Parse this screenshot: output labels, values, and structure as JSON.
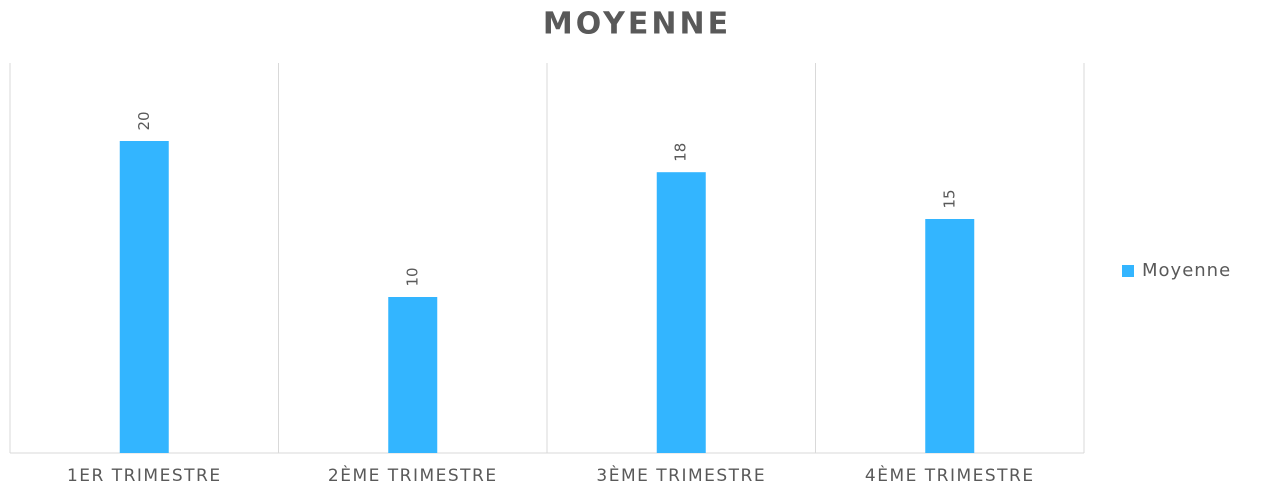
{
  "chart_data": {
    "type": "bar",
    "title": "MOYENNE",
    "categories": [
      "1ER TRIMESTRE",
      "2ÈME TRIMESTRE",
      "3ÈME TRIMESTRE",
      "4ÈME TRIMESTRE"
    ],
    "series": [
      {
        "name": "Moyenne",
        "color": "#33b5ff",
        "values": [
          20,
          10,
          18,
          15
        ]
      }
    ],
    "ylim": [
      0,
      25
    ],
    "legend": "right"
  }
}
